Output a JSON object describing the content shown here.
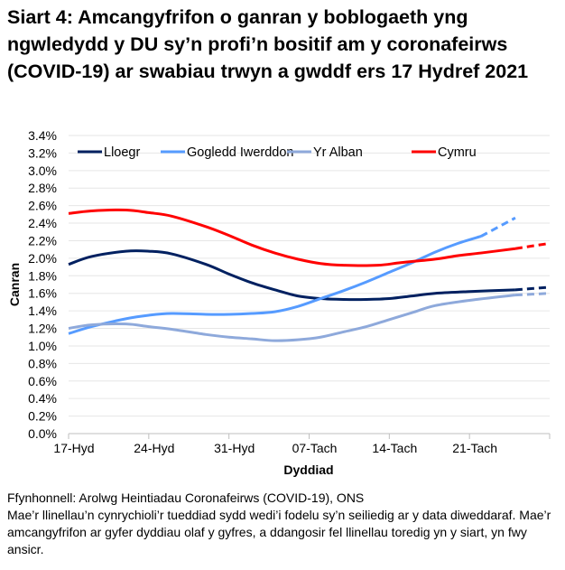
{
  "chart_data": {
    "type": "line",
    "title": "Siart 4: Amcangyfrifon o ganran y boblogaeth yng ngwledydd y DU sy’n profi’n bositif am y coronafeirws (COVID-19) ar swabiau trwyn a gwddf ers 17 Hydref 2021",
    "xlabel": "Dyddiad",
    "ylabel": "Canran",
    "xlim": [
      "2021-10-17",
      "2021-11-28"
    ],
    "ylim": [
      0,
      3.4
    ],
    "y_ticks": [
      "0.0%",
      "0.2%",
      "0.4%",
      "0.6%",
      "0.8%",
      "1.0%",
      "1.2%",
      "1.4%",
      "1.6%",
      "1.8%",
      "2.0%",
      "2.2%",
      "2.4%",
      "2.6%",
      "2.8%",
      "3.0%",
      "3.2%",
      "3.4%"
    ],
    "x_ticks": [
      {
        "date": "2021-10-17",
        "label": "17-Hyd"
      },
      {
        "date": "2021-10-24",
        "label": "24-Hyd"
      },
      {
        "date": "2021-10-31",
        "label": "31-Hyd"
      },
      {
        "date": "2021-11-07",
        "label": "07-Tach"
      },
      {
        "date": "2021-11-14",
        "label": "14-Tach"
      },
      {
        "date": "2021-11-21",
        "label": "21-Tach"
      }
    ],
    "grid": true,
    "legend_position": "top",
    "series": [
      {
        "name": "Lloegr",
        "color": "#002060",
        "x": [
          "2021-10-17",
          "2021-10-19",
          "2021-10-22",
          "2021-10-24",
          "2021-10-26",
          "2021-10-29",
          "2021-10-31",
          "2021-11-02",
          "2021-11-04",
          "2021-11-06",
          "2021-11-08",
          "2021-11-10",
          "2021-11-12",
          "2021-11-14",
          "2021-11-16",
          "2021-11-18",
          "2021-11-21",
          "2021-11-25"
        ],
        "values": [
          1.93,
          2.02,
          2.08,
          2.08,
          2.05,
          1.93,
          1.82,
          1.72,
          1.64,
          1.57,
          1.54,
          1.53,
          1.53,
          1.54,
          1.57,
          1.6,
          1.62,
          1.64
        ],
        "projected_x": [
          "2021-11-25",
          "2021-11-28"
        ],
        "projected_values": [
          1.64,
          1.67
        ]
      },
      {
        "name": "Gogledd Iwerddon",
        "color": "#569BFF",
        "x": [
          "2021-10-17",
          "2021-10-19",
          "2021-10-22",
          "2021-10-24",
          "2021-10-26",
          "2021-10-29",
          "2021-10-31",
          "2021-11-02",
          "2021-11-04",
          "2021-11-06",
          "2021-11-08",
          "2021-11-10",
          "2021-11-12",
          "2021-11-14",
          "2021-11-16",
          "2021-11-18",
          "2021-11-20",
          "2021-11-22"
        ],
        "values": [
          1.14,
          1.22,
          1.31,
          1.35,
          1.37,
          1.36,
          1.36,
          1.37,
          1.39,
          1.45,
          1.54,
          1.63,
          1.73,
          1.84,
          1.95,
          2.07,
          2.17,
          2.25
        ],
        "projected_x": [
          "2021-11-22",
          "2021-11-25"
        ],
        "projected_values": [
          2.25,
          2.46
        ]
      },
      {
        "name": "Yr Alban",
        "color": "#8EA9DB",
        "x": [
          "2021-10-17",
          "2021-10-19",
          "2021-10-22",
          "2021-10-24",
          "2021-10-26",
          "2021-10-29",
          "2021-10-31",
          "2021-11-02",
          "2021-11-04",
          "2021-11-06",
          "2021-11-08",
          "2021-11-10",
          "2021-11-12",
          "2021-11-14",
          "2021-11-16",
          "2021-11-18",
          "2021-11-21",
          "2021-11-25"
        ],
        "values": [
          1.2,
          1.24,
          1.25,
          1.22,
          1.19,
          1.13,
          1.1,
          1.08,
          1.06,
          1.07,
          1.1,
          1.16,
          1.22,
          1.3,
          1.38,
          1.46,
          1.52,
          1.58
        ],
        "projected_x": [
          "2021-11-25",
          "2021-11-28"
        ],
        "projected_values": [
          1.58,
          1.6
        ]
      },
      {
        "name": "Cymru",
        "color": "#FF0000",
        "x": [
          "2021-10-17",
          "2021-10-19",
          "2021-10-22",
          "2021-10-24",
          "2021-10-26",
          "2021-10-29",
          "2021-10-31",
          "2021-11-02",
          "2021-11-04",
          "2021-11-06",
          "2021-11-08",
          "2021-11-10",
          "2021-11-13",
          "2021-11-15",
          "2021-11-18",
          "2021-11-20",
          "2021-11-22",
          "2021-11-25"
        ],
        "values": [
          2.51,
          2.54,
          2.55,
          2.52,
          2.48,
          2.36,
          2.26,
          2.15,
          2.06,
          1.99,
          1.94,
          1.92,
          1.92,
          1.95,
          1.99,
          2.03,
          2.06,
          2.11
        ],
        "projected_x": [
          "2021-11-25",
          "2021-11-28"
        ],
        "projected_values": [
          2.11,
          2.17
        ]
      }
    ]
  },
  "notes": {
    "source": "Ffynhonnell: Arolwg Heintiadau Coronafeirws (COVID-19), ONS",
    "note": "Mae’r llinellau’n cynrychioli’r tueddiad sydd wedi’i fodelu sy’n seiliedig ar y data diweddaraf. Mae’r amcangyfrifon ar gyfer dyddiau olaf y gyfres, a ddangosir fel llinellau toredig yn y siart, yn fwy ansicr."
  }
}
